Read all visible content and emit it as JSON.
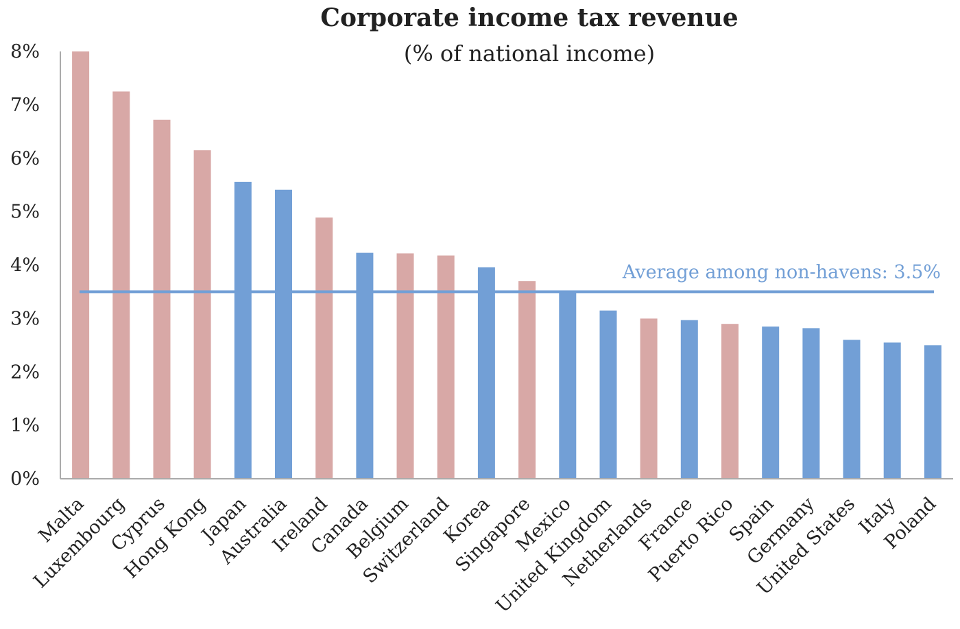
{
  "chart_data": {
    "type": "bar",
    "title": "Corporate income tax revenue",
    "subtitle": "(% of national income)",
    "xlabel": "",
    "ylabel": "",
    "ylim": [
      0,
      8
    ],
    "yticks": [
      "0%",
      "1%",
      "2%",
      "3%",
      "4%",
      "5%",
      "6%",
      "7%",
      "8%"
    ],
    "grid": false,
    "colors": {
      "haven": "#d8a8a6",
      "non_haven": "#729fd6",
      "average_line": "#729fd6"
    },
    "categories": [
      "Malta",
      "Luxembourg",
      "Cyprus",
      "Hong Kong",
      "Japan",
      "Australia",
      "Ireland",
      "Canada",
      "Belgium",
      "Switzerland",
      "Korea",
      "Singapore",
      "Mexico",
      "United Kingdom",
      "Netherlands",
      "France",
      "Puerto Rico",
      "Spain",
      "Germany",
      "United States",
      "Italy",
      "Poland"
    ],
    "values": [
      8.0,
      7.25,
      6.72,
      6.15,
      5.56,
      5.41,
      4.89,
      4.23,
      4.22,
      4.18,
      3.96,
      3.7,
      3.52,
      3.15,
      3.0,
      2.97,
      2.9,
      2.85,
      2.82,
      2.6,
      2.55,
      2.5
    ],
    "haven": [
      true,
      true,
      true,
      true,
      false,
      false,
      true,
      false,
      true,
      true,
      false,
      true,
      false,
      false,
      true,
      false,
      true,
      false,
      false,
      false,
      false,
      false
    ],
    "average": {
      "value": 3.5,
      "label": "Average among non-havens: 3.5%"
    }
  }
}
